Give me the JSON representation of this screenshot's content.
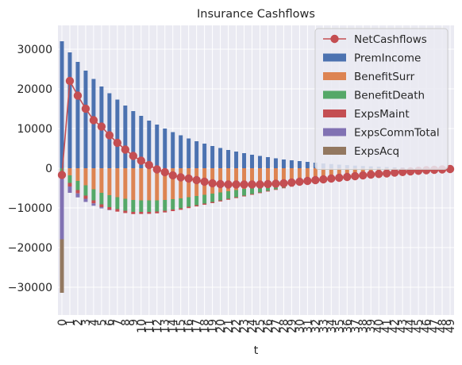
{
  "chart_data": {
    "type": "bar",
    "title": "Insurance Cashflows",
    "xlabel": "t",
    "ylabel": "",
    "stacked": true,
    "ylim": [
      -37000,
      36000
    ],
    "yticks": [
      -30000,
      -20000,
      -10000,
      0,
      10000,
      20000,
      30000
    ],
    "yticklabels": [
      "−30000",
      "−20000",
      "−10000",
      "0",
      "10000",
      "20000",
      "30000"
    ],
    "grid": true,
    "legend_position": "top-right",
    "categories": [
      "0",
      "1",
      "2",
      "3",
      "4",
      "5",
      "6",
      "7",
      "8",
      "9",
      "10",
      "11",
      "12",
      "13",
      "14",
      "15",
      "16",
      "17",
      "18",
      "19",
      "20",
      "21",
      "22",
      "23",
      "24",
      "25",
      "26",
      "27",
      "28",
      "29",
      "30",
      "31",
      "32",
      "33",
      "34",
      "35",
      "36",
      "37",
      "38",
      "39",
      "40",
      "41",
      "42",
      "43",
      "44",
      "45",
      "46",
      "47",
      "48",
      "49"
    ],
    "series": [
      {
        "name": "PremIncome",
        "kind": "bar",
        "color": "#4c72b0",
        "values": [
          32000,
          29200,
          26800,
          24600,
          22500,
          20600,
          18900,
          17300,
          15800,
          14400,
          13200,
          12000,
          11000,
          10000,
          9100,
          8300,
          7500,
          6800,
          6200,
          5600,
          5100,
          4600,
          4200,
          3800,
          3400,
          3100,
          2800,
          2500,
          2200,
          2000,
          1800,
          1600,
          1400,
          1200,
          1050,
          900,
          780,
          660,
          560,
          470,
          380,
          300,
          230,
          170,
          120,
          80,
          50,
          30,
          15,
          5
        ]
      },
      {
        "name": "BenefitSurr",
        "kind": "bar",
        "color": "#dd8452",
        "values": [
          0,
          -1800,
          -3200,
          -4300,
          -5300,
          -6200,
          -6800,
          -7300,
          -7700,
          -8000,
          -8100,
          -8100,
          -8100,
          -8000,
          -7800,
          -7600,
          -7300,
          -7000,
          -6700,
          -6400,
          -6100,
          -5800,
          -5500,
          -5200,
          -4900,
          -4600,
          -4300,
          -4000,
          -3700,
          -3400,
          -3100,
          -2900,
          -2600,
          -2400,
          -2200,
          -2000,
          -1800,
          -1600,
          -1450,
          -1300,
          -1150,
          -1000,
          -880,
          -760,
          -650,
          -560,
          -470,
          -380,
          -300,
          -230
        ]
      },
      {
        "name": "BenefitDeath",
        "kind": "bar",
        "color": "#55a868",
        "values": [
          -1100,
          -1900,
          -2300,
          -2600,
          -2800,
          -2900,
          -3000,
          -3000,
          -3000,
          -3000,
          -2900,
          -2900,
          -2800,
          -2700,
          -2600,
          -2500,
          -2400,
          -2300,
          -2200,
          -2100,
          -2000,
          -1900,
          -1800,
          -1700,
          -1600,
          -1500,
          -1400,
          -1300,
          -1200,
          -1100,
          -1000,
          -950,
          -900,
          -850,
          -800,
          -750,
          -700,
          -650,
          -600,
          -550,
          -500,
          -450,
          -400,
          -350,
          -300,
          -250,
          -200,
          -150,
          -100,
          -60
        ]
      },
      {
        "name": "ExpsMaint",
        "kind": "bar",
        "color": "#c44e52",
        "values": [
          -1000,
          -900,
          -850,
          -800,
          -760,
          -720,
          -680,
          -640,
          -600,
          -560,
          -530,
          -500,
          -470,
          -440,
          -410,
          -380,
          -350,
          -330,
          -310,
          -290,
          -270,
          -250,
          -230,
          -210,
          -200,
          -190,
          -180,
          -170,
          -160,
          -150,
          -140,
          -130,
          -120,
          -110,
          -100,
          -90,
          -80,
          -70,
          -60,
          -55,
          -50,
          -45,
          -40,
          -35,
          -30,
          -25,
          -20,
          -15,
          -10,
          -5
        ]
      },
      {
        "name": "ExpsCommTotal",
        "kind": "bar",
        "color": "#8172b3",
        "values": [
          -15800,
          -1600,
          -1000,
          -800,
          -600,
          -300,
          -100,
          0,
          0,
          0,
          0,
          0,
          0,
          0,
          0,
          0,
          0,
          0,
          0,
          0,
          0,
          0,
          0,
          0,
          0,
          0,
          0,
          0,
          0,
          0,
          0,
          0,
          0,
          0,
          0,
          0,
          0,
          0,
          0,
          0,
          0,
          0,
          0,
          0,
          0,
          0,
          0,
          0,
          0,
          0
        ]
      },
      {
        "name": "ExpsAcq",
        "kind": "bar",
        "color": "#937860",
        "values": [
          -13500,
          0,
          0,
          0,
          0,
          0,
          0,
          0,
          0,
          0,
          0,
          0,
          0,
          0,
          0,
          0,
          0,
          0,
          0,
          0,
          0,
          0,
          0,
          0,
          0,
          0,
          0,
          0,
          0,
          0,
          0,
          0,
          0,
          0,
          0,
          0,
          0,
          0,
          0,
          0,
          0,
          0,
          0,
          0,
          0,
          0,
          0,
          0,
          0,
          0
        ]
      },
      {
        "name": "NetCashflows",
        "kind": "line",
        "color": "#c44e52",
        "values": [
          -1700,
          22000,
          18300,
          15000,
          12100,
          10500,
          8300,
          6400,
          4700,
          3100,
          1900,
          800,
          -300,
          -1000,
          -1800,
          -2300,
          -2600,
          -3000,
          -3400,
          -3800,
          -4000,
          -4100,
          -4100,
          -4100,
          -4100,
          -4100,
          -4000,
          -3900,
          -3800,
          -3600,
          -3400,
          -3200,
          -3000,
          -2800,
          -2600,
          -2400,
          -2200,
          -2000,
          -1800,
          -1600,
          -1450,
          -1300,
          -1100,
          -950,
          -800,
          -650,
          -500,
          -400,
          -300,
          -200
        ]
      }
    ]
  }
}
